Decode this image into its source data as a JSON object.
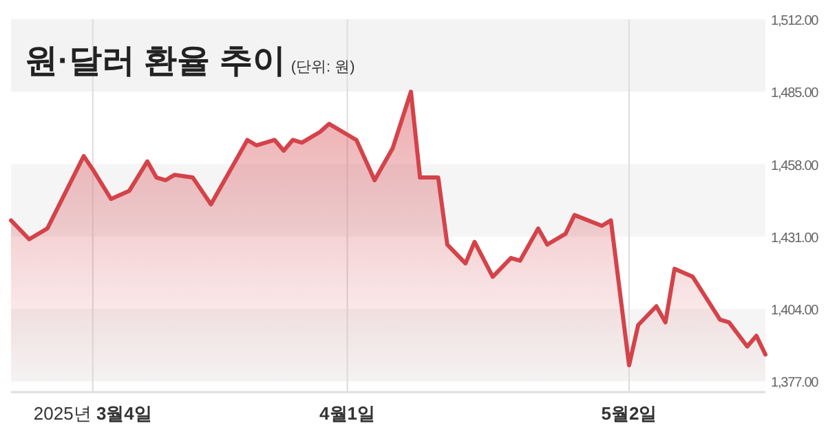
{
  "chart_data": {
    "type": "area",
    "title": "원·달러 환율 추이",
    "subtitle": "(단위: 원)",
    "x": [
      "2025-02-23",
      "2025-02-25",
      "2025-02-27",
      "2025-03-03",
      "2025-03-04",
      "2025-03-06",
      "2025-03-08",
      "2025-03-10",
      "2025-03-11",
      "2025-03-12",
      "2025-03-13",
      "2025-03-15",
      "2025-03-17",
      "2025-03-21",
      "2025-03-22",
      "2025-03-24",
      "2025-03-25",
      "2025-03-26",
      "2025-03-27",
      "2025-03-29",
      "2025-03-30",
      "2025-04-02",
      "2025-04-04",
      "2025-04-06",
      "2025-04-08",
      "2025-04-09",
      "2025-04-11",
      "2025-04-12",
      "2025-04-14",
      "2025-04-15",
      "2025-04-17",
      "2025-04-19",
      "2025-04-20",
      "2025-04-22",
      "2025-04-23",
      "2025-04-25",
      "2025-04-26",
      "2025-04-29",
      "2025-04-30",
      "2025-05-02",
      "2025-05-03",
      "2025-05-05",
      "2025-05-06",
      "2025-05-07",
      "2025-05-09",
      "2025-05-12",
      "2025-05-13",
      "2025-05-15",
      "2025-05-16",
      "2025-05-17"
    ],
    "series": [
      {
        "color": "#d4434a",
        "values": [
          1437,
          1430,
          1434,
          1461,
          1456,
          1445,
          1448,
          1459,
          1453,
          1452,
          1454,
          1453,
          1443,
          1467,
          1465,
          1467,
          1463,
          1467,
          1466,
          1470,
          1473,
          1467,
          1452,
          1464,
          1485,
          1453,
          1453,
          1428,
          1421,
          1429,
          1416,
          1423,
          1422,
          1434,
          1428,
          1432,
          1439,
          1435,
          1437,
          1383,
          1398,
          1405,
          1399,
          1419,
          1416,
          1400,
          1399,
          1390,
          1394,
          1387
        ]
      }
    ],
    "xlim": [
      "2025-02-23",
      "2025-05-17"
    ],
    "xticks": [
      {
        "value": "2025-03-04",
        "label": "2025년 3월4일"
      },
      {
        "value": "2025-04-01",
        "label": "4월1일"
      },
      {
        "value": "2025-05-02",
        "label": "5월2일"
      }
    ],
    "ylim": [
      1373,
      1512
    ],
    "yticks": [
      {
        "value": 1377,
        "label": "1,377.00"
      },
      {
        "value": 1404,
        "label": "1,404.00"
      },
      {
        "value": 1431,
        "label": "1,431.00"
      },
      {
        "value": 1458,
        "label": "1,458.00"
      },
      {
        "value": 1485,
        "label": "1,485.00"
      },
      {
        "value": 1512,
        "label": "1,512.00"
      }
    ],
    "bands": [
      {
        "axis": "y",
        "from": 1377,
        "to": 1404,
        "color": "#f5f5f5"
      },
      {
        "axis": "y",
        "from": 1431,
        "to": 1458,
        "color": "#f5f5f5"
      },
      {
        "axis": "y",
        "from": 1485,
        "to": 1512,
        "color": "#f3f3f3"
      }
    ],
    "grid": "x",
    "line_style": "solid",
    "marker": "none"
  }
}
